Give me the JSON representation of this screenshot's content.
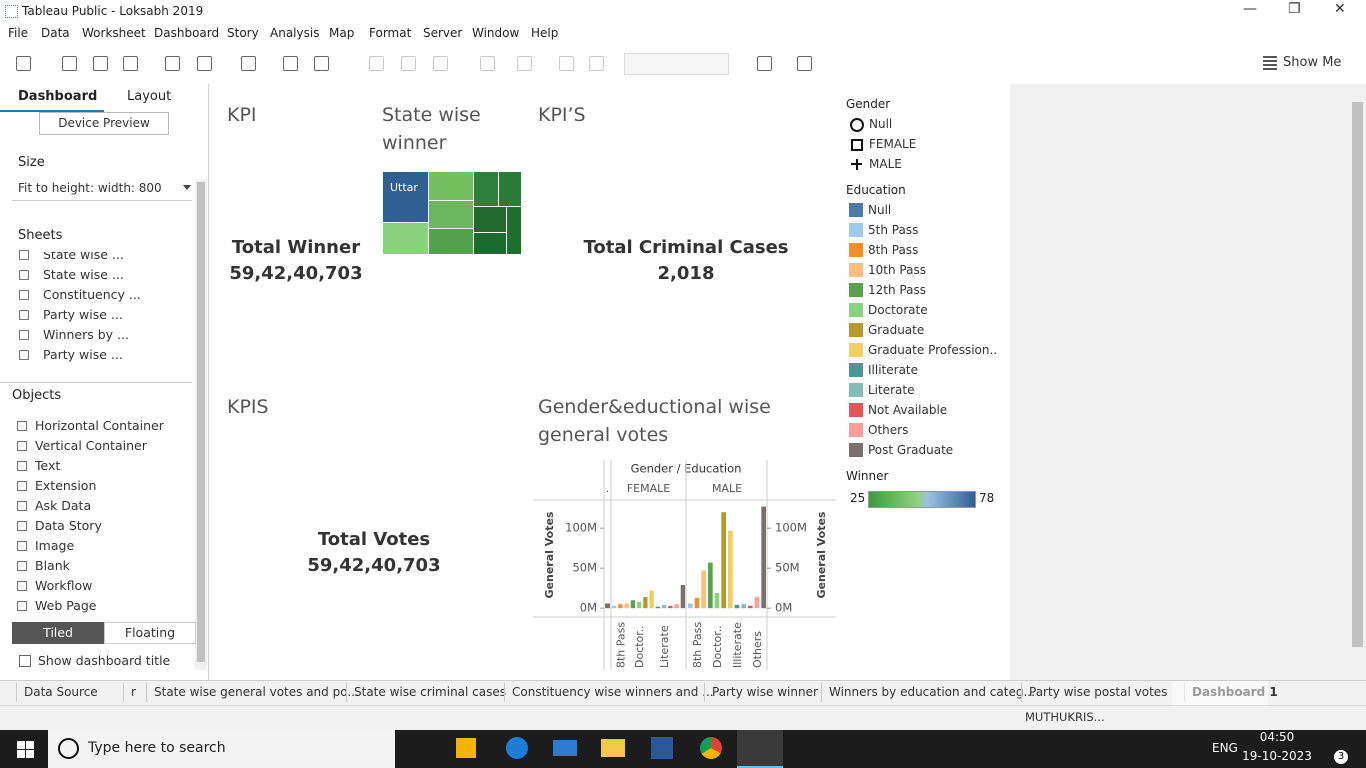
{
  "window_title": "Tableau Public - Loksabh 2019",
  "menu": [
    "File",
    "Data",
    "Worksheet",
    "Dashboard",
    "Story",
    "Analysis",
    "Map",
    "Format",
    "Server",
    "Window",
    "Help"
  ],
  "toolbar": {
    "show_me": "Show Me"
  },
  "side_panel": {
    "tabs": [
      "Dashboard",
      "Layout"
    ],
    "device_preview": "Device Preview",
    "size_heading": "Size",
    "size_value": "Fit to height: width: 800",
    "sheets_heading": "Sheets",
    "sheets": [
      "State wise ...",
      "State wise ...",
      "Constituency ...",
      "Party wise ...",
      "Winners by ...",
      "Party wise ..."
    ],
    "objects_heading": "Objects",
    "objects": [
      "Horizontal Container",
      "Vertical Container",
      "Text",
      "Extension",
      "Ask Data",
      "Data Story",
      "Image",
      "Blank",
      "Workflow",
      "Web Page"
    ],
    "layout_modes": [
      "Tiled",
      "Floating"
    ],
    "show_title": "Show dashboard title"
  },
  "dashboard": {
    "kpi_total_winner": {
      "title": "KPI",
      "label": "Total Winner",
      "value": "59,42,40,703"
    },
    "treemap": {
      "title": "State wise winner",
      "label": "Uttar"
    },
    "kpi_criminal": {
      "title": "KPI’S",
      "label": "Total Criminal Cases",
      "value": "2,018"
    },
    "kpi_votes": {
      "title": "KPIS",
      "label": "Total Votes",
      "value": "59,42,40,703"
    },
    "chart": {
      "type": "bar",
      "title": "Gender&eductional wise general votes",
      "header": "Gender / Education",
      "y_title": "General Votes",
      "ylim": [
        -11000000,
        135000000
      ],
      "yticks": [
        {
          "value": 0,
          "label": "0M"
        },
        {
          "value": 50000000,
          "label": "50M"
        },
        {
          "value": 100000000,
          "label": "100M"
        }
      ],
      "panels": [
        {
          "name": ".",
          "categories": [
            null
          ],
          "values": [
            6000000
          ],
          "colors": [
            "#79706e"
          ]
        },
        {
          "name": "FEMALE",
          "categories": [
            null,
            "8th Pass",
            null,
            null,
            "Doctor..",
            null,
            null,
            null,
            "Literate",
            null,
            null,
            null
          ],
          "values": [
            3000000,
            5000000,
            6000000,
            10000000,
            8000000,
            14000000,
            22000000,
            2000000,
            4000000,
            3000000,
            5000000,
            29000000
          ],
          "colors": [
            "#a0cbe8",
            "#f28e2b",
            "#ffbe7d",
            "#59a14f",
            "#8cd17d",
            "#b6992d",
            "#f1ce63",
            "#499894",
            "#86bcb6",
            "#e15759",
            "#ff9d9a",
            "#79706e"
          ]
        },
        {
          "name": "MALE",
          "categories": [
            null,
            "8th Pass",
            null,
            null,
            "Doctor..",
            null,
            null,
            "Illiterate",
            null,
            null,
            "Others",
            null
          ],
          "values": [
            6000000,
            13000000,
            47000000,
            57000000,
            19000000,
            120000000,
            97000000,
            4000000,
            5000000,
            3000000,
            14000000,
            127000000
          ],
          "colors": [
            "#a0cbe8",
            "#f28e2b",
            "#ffbe7d",
            "#59a14f",
            "#8cd17d",
            "#b6992d",
            "#f1ce63",
            "#499894",
            "#86bcb6",
            "#e15759",
            "#ff9d9a",
            "#79706e"
          ]
        }
      ]
    }
  },
  "legend": {
    "gender": {
      "title": "Gender",
      "items": [
        "Null",
        "FEMALE",
        "MALE"
      ]
    },
    "education": {
      "title": "Education",
      "items": [
        {
          "name": "Null",
          "color": "#4e79a7"
        },
        {
          "name": "5th Pass",
          "color": "#a0cbe8"
        },
        {
          "name": "8th Pass",
          "color": "#f28e2b"
        },
        {
          "name": "10th Pass",
          "color": "#ffbe7d"
        },
        {
          "name": "12th Pass",
          "color": "#59a14f"
        },
        {
          "name": "Doctorate",
          "color": "#8cd17d"
        },
        {
          "name": "Graduate",
          "color": "#b6992d"
        },
        {
          "name": "Graduate Profession..",
          "color": "#f1ce63"
        },
        {
          "name": "Illiterate",
          "color": "#499894"
        },
        {
          "name": "Literate",
          "color": "#86bcb6"
        },
        {
          "name": "Not Available",
          "color": "#e15759"
        },
        {
          "name": "Others",
          "color": "#ff9d9a"
        },
        {
          "name": "Post Graduate",
          "color": "#79706e"
        }
      ]
    },
    "winner": {
      "title": "Winner",
      "min": 25,
      "max": 78
    }
  },
  "sheet_tabs": [
    "Data Source",
    "r",
    "State wise general votes and po...",
    "State wise criminal cases",
    "Constituency wise winners and ...",
    "Party wise winner",
    "Winners by education and categ...",
    "Party wise postal votes",
    "Dashboard 1"
  ],
  "status": {
    "user": "MUTHUKRIS..."
  },
  "taskbar": {
    "search": "Type here to search",
    "language": "ENG",
    "time": "04:50",
    "date": "19-10-2023",
    "notifications": "3"
  }
}
